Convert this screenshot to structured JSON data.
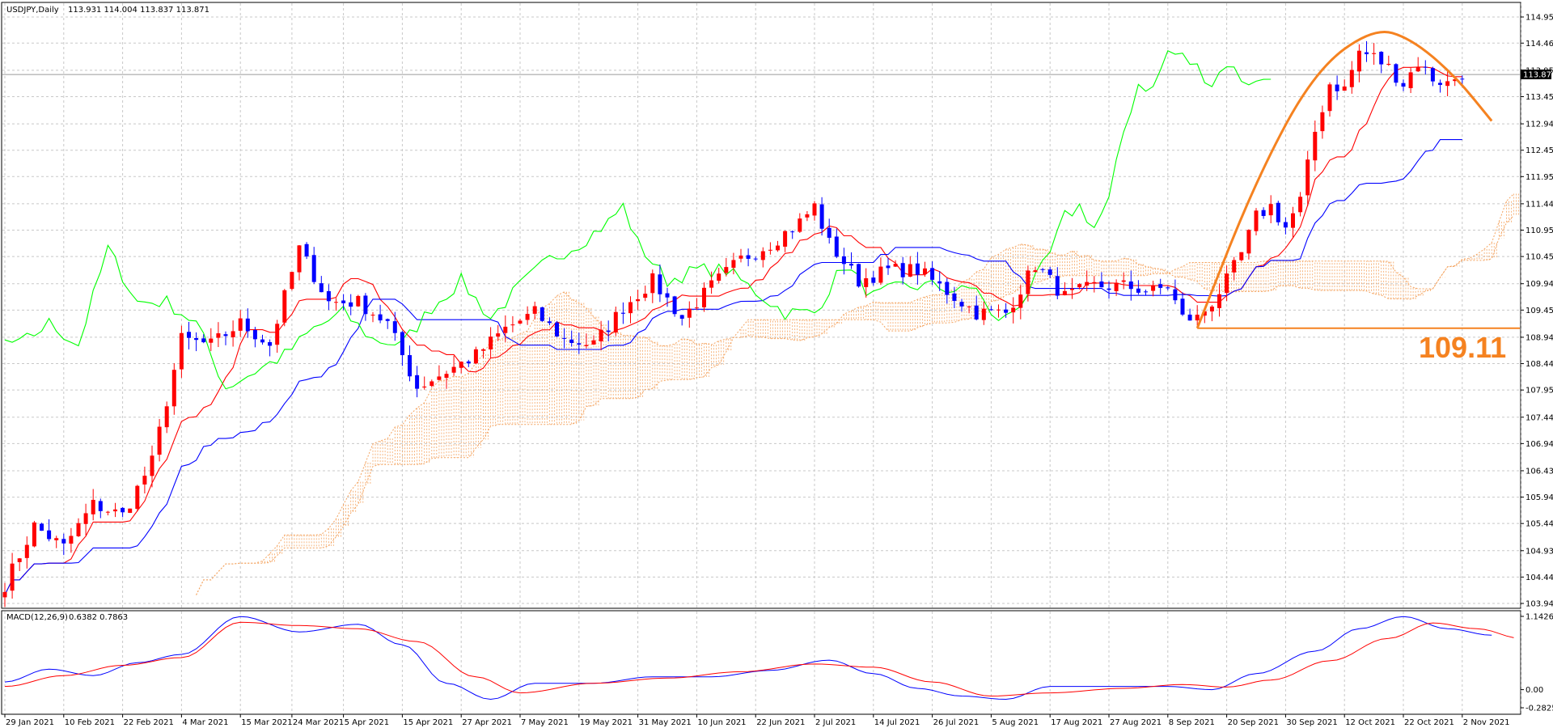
{
  "header": {
    "symbol": "USDJPY,Daily",
    "ohlc": "113.931 114.004 113.837 113.871"
  },
  "price_tag": "113.871",
  "annotation_label": "109.11",
  "macd_header": {
    "label": "MACD(12,26,9)",
    "values": "0.6382 0.7863"
  },
  "colors": {
    "up": "#ff0000",
    "down": "#0000ff",
    "tenkan": "#ff0000",
    "kijun": "#0000ff",
    "chikou": "#00ff00",
    "cloud": "#f4a460",
    "annotation": "#f58220",
    "grid": "#c8c8c8",
    "macd_main": "#0000ff",
    "macd_signal": "#ff0000"
  },
  "chart_data": [
    {
      "type": "candlestick",
      "ylim": [
        103.945,
        114.95
      ],
      "y_ticks": [
        "114.950",
        "114.460",
        "113.950",
        "113.455",
        "112.945",
        "112.450",
        "111.955",
        "111.445",
        "110.950",
        "110.455",
        "109.945",
        "109.450",
        "108.940",
        "108.445",
        "107.950",
        "107.440",
        "106.945",
        "106.435",
        "105.940",
        "105.445",
        "104.935",
        "104.440",
        "103.945"
      ],
      "x_labels": [
        {
          "label": "29 Jan 2021",
          "day": 0
        },
        {
          "label": "10 Feb 2021",
          "day": 8
        },
        {
          "label": "22 Feb 2021",
          "day": 16
        },
        {
          "label": "4 Mar 2021",
          "day": 24
        },
        {
          "label": "15 Mar 2021",
          "day": 32
        },
        {
          "label": "24 Mar 2021",
          "day": 39
        },
        {
          "label": "5 Apr 2021",
          "day": 46
        },
        {
          "label": "15 Apr 2021",
          "day": 54
        },
        {
          "label": "27 Apr 2021",
          "day": 62
        },
        {
          "label": "7 May 2021",
          "day": 70
        },
        {
          "label": "19 May 2021",
          "day": 78
        },
        {
          "label": "31 May 2021",
          "day": 86
        },
        {
          "label": "10 Jun 2021",
          "day": 94
        },
        {
          "label": "22 Jun 2021",
          "day": 102
        },
        {
          "label": "2 Jul 2021",
          "day": 110
        },
        {
          "label": "14 Jul 2021",
          "day": 118
        },
        {
          "label": "26 Jul 2021",
          "day": 126
        },
        {
          "label": "5 Aug 2021",
          "day": 134
        },
        {
          "label": "17 Aug 2021",
          "day": 142
        },
        {
          "label": "27 Aug 2021",
          "day": 150
        },
        {
          "label": "8 Sep 2021",
          "day": 158
        },
        {
          "label": "20 Sep 2021",
          "day": 166
        },
        {
          "label": "30 Sep 2021",
          "day": 174
        },
        {
          "label": "12 Oct 2021",
          "day": 182
        },
        {
          "label": "22 Oct 2021",
          "day": 190
        },
        {
          "label": "2 Nov 2021",
          "day": 198
        }
      ],
      "annotations": {
        "horizontal_level": 109.11,
        "arc": [
          [
            162,
            109.11
          ],
          [
            170,
            111.9
          ],
          [
            178,
            113.95
          ],
          [
            186,
            114.75
          ],
          [
            191,
            114.55
          ],
          [
            197,
            113.85
          ],
          [
            202,
            113.0
          ]
        ]
      },
      "anchor_points": [
        [
          0,
          104.3
        ],
        [
          4,
          105.4
        ],
        [
          8,
          105.0
        ],
        [
          12,
          105.8
        ],
        [
          16,
          105.6
        ],
        [
          20,
          106.6
        ],
        [
          24,
          108.9
        ],
        [
          28,
          108.8
        ],
        [
          32,
          109.2
        ],
        [
          36,
          108.8
        ],
        [
          40,
          110.6
        ],
        [
          44,
          109.6
        ],
        [
          48,
          109.6
        ],
        [
          52,
          109.2
        ],
        [
          56,
          108.0
        ],
        [
          60,
          108.3
        ],
        [
          64,
          108.6
        ],
        [
          68,
          109.1
        ],
        [
          72,
          109.4
        ],
        [
          76,
          108.9
        ],
        [
          80,
          108.8
        ],
        [
          84,
          109.5
        ],
        [
          88,
          110.0
        ],
        [
          92,
          109.3
        ],
        [
          96,
          109.9
        ],
        [
          100,
          110.4
        ],
        [
          104,
          110.7
        ],
        [
          108,
          111.1
        ],
        [
          110,
          111.4
        ],
        [
          112,
          110.7
        ],
        [
          116,
          110.0
        ],
        [
          120,
          110.2
        ],
        [
          124,
          110.2
        ],
        [
          128,
          109.8
        ],
        [
          132,
          109.4
        ],
        [
          136,
          109.4
        ],
        [
          140,
          110.3
        ],
        [
          144,
          109.7
        ],
        [
          148,
          109.9
        ],
        [
          152,
          109.9
        ],
        [
          156,
          109.8
        ],
        [
          158,
          109.9
        ],
        [
          160,
          109.3
        ],
        [
          162,
          109.3
        ],
        [
          164,
          109.6
        ],
        [
          166,
          110.0
        ],
        [
          168,
          110.5
        ],
        [
          170,
          111.2
        ],
        [
          172,
          111.4
        ],
        [
          174,
          111.0
        ],
        [
          176,
          111.5
        ],
        [
          178,
          112.8
        ],
        [
          180,
          113.7
        ],
        [
          182,
          113.6
        ],
        [
          184,
          114.3
        ],
        [
          186,
          114.2
        ],
        [
          188,
          114.0
        ],
        [
          190,
          113.7
        ],
        [
          192,
          114.1
        ],
        [
          194,
          113.8
        ],
        [
          196,
          113.7
        ],
        [
          198,
          113.9
        ]
      ]
    },
    {
      "type": "line",
      "title": "MACD(12,26,9)",
      "y_ticks": [
        "1.1426",
        "0.00",
        "-0.2825"
      ],
      "ylim": [
        -0.2825,
        1.1426
      ],
      "main_anchors": [
        [
          0,
          0.12
        ],
        [
          6,
          0.32
        ],
        [
          12,
          0.22
        ],
        [
          18,
          0.42
        ],
        [
          24,
          0.55
        ],
        [
          32,
          1.14
        ],
        [
          40,
          0.9
        ],
        [
          48,
          1.02
        ],
        [
          54,
          0.7
        ],
        [
          60,
          0.1
        ],
        [
          66,
          -0.15
        ],
        [
          72,
          0.1
        ],
        [
          80,
          0.1
        ],
        [
          88,
          0.2
        ],
        [
          96,
          0.2
        ],
        [
          104,
          0.3
        ],
        [
          112,
          0.46
        ],
        [
          118,
          0.25
        ],
        [
          124,
          0.02
        ],
        [
          130,
          -0.1
        ],
        [
          136,
          -0.15
        ],
        [
          142,
          0.05
        ],
        [
          150,
          0.05
        ],
        [
          158,
          0.05
        ],
        [
          164,
          0.0
        ],
        [
          170,
          0.25
        ],
        [
          178,
          0.6
        ],
        [
          184,
          0.95
        ],
        [
          190,
          1.14
        ],
        [
          196,
          0.95
        ],
        [
          202,
          0.85
        ]
      ],
      "signal_anchors": [
        [
          0,
          0.05
        ],
        [
          8,
          0.22
        ],
        [
          16,
          0.38
        ],
        [
          24,
          0.5
        ],
        [
          32,
          1.05
        ],
        [
          40,
          1.0
        ],
        [
          48,
          0.95
        ],
        [
          56,
          0.75
        ],
        [
          64,
          0.2
        ],
        [
          70,
          -0.05
        ],
        [
          80,
          0.1
        ],
        [
          90,
          0.18
        ],
        [
          100,
          0.28
        ],
        [
          110,
          0.4
        ],
        [
          118,
          0.35
        ],
        [
          126,
          0.12
        ],
        [
          134,
          -0.1
        ],
        [
          142,
          -0.05
        ],
        [
          152,
          0.02
        ],
        [
          160,
          0.08
        ],
        [
          166,
          0.04
        ],
        [
          172,
          0.15
        ],
        [
          180,
          0.45
        ],
        [
          188,
          0.8
        ],
        [
          194,
          1.04
        ],
        [
          200,
          0.95
        ],
        [
          206,
          0.8
        ]
      ]
    }
  ]
}
